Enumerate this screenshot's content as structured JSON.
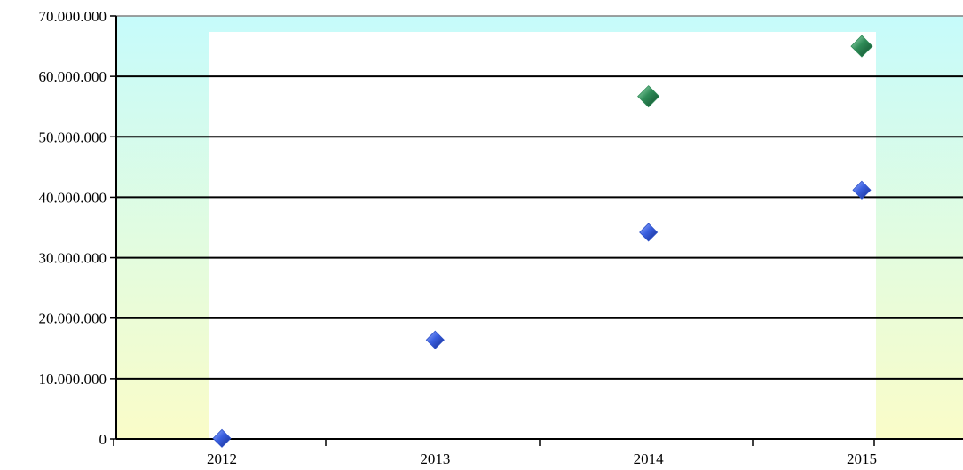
{
  "chart_data": {
    "type": "scatter",
    "title": "",
    "xlabel": "",
    "ylabel": "",
    "categories": [
      "2012",
      "2013",
      "2014",
      "2015"
    ],
    "ylim": [
      0,
      70000000
    ],
    "y_ticks": [
      0,
      10000000,
      20000000,
      30000000,
      40000000,
      50000000,
      60000000,
      70000000
    ],
    "y_tick_labels": [
      "0",
      "10.000.000",
      "20.000.000",
      "30.000.000",
      "40.000.000",
      "50.000.000",
      "60.000.000",
      "70.000.000"
    ],
    "grid": true,
    "legend": "none",
    "background_gradient": [
      "#c6fbfb",
      "#fafcc8"
    ],
    "series": [
      {
        "marker": "diamond",
        "color": "#2f52c9",
        "points": [
          {
            "x": "2012",
            "y": 100000
          },
          {
            "x": "2013",
            "y": 16400000
          },
          {
            "x": "2014",
            "y": 34200000
          },
          {
            "x": "2015",
            "y": 41200000
          }
        ]
      },
      {
        "marker": "diamond",
        "color": "#2e8b57",
        "points": [
          {
            "x": "2014",
            "y": 56700000
          },
          {
            "x": "2015",
            "y": 65000000
          }
        ]
      }
    ]
  }
}
